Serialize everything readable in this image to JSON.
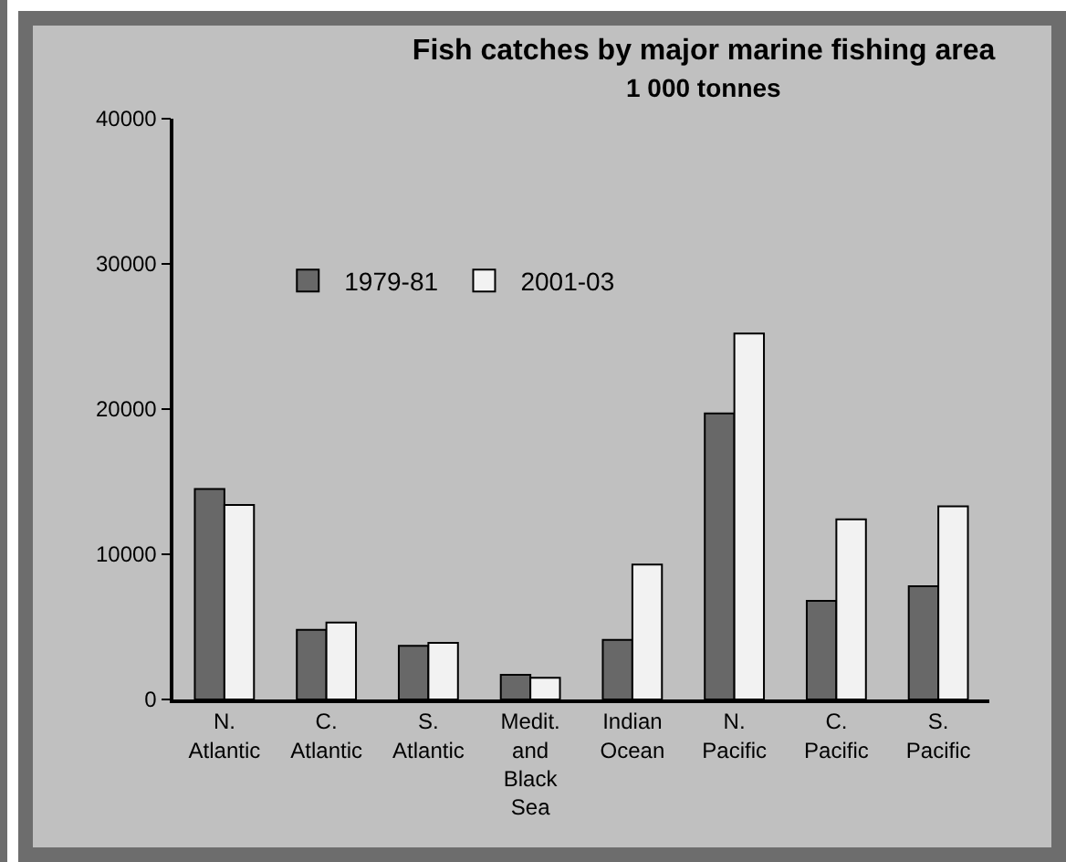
{
  "chart_data": {
    "type": "bar",
    "title": "Fish catches by major marine fishing area",
    "subtitle": "1 000 tonnes",
    "categories": [
      "N. Atlantic",
      "C. Atlantic",
      "S. Atlantic",
      "Medit. and Black Sea",
      "Indian Ocean",
      "N. Pacific",
      "C. Pacific",
      "S. Pacific"
    ],
    "series": [
      {
        "name": "1979-81",
        "color": "#686868",
        "values": [
          14500,
          4800,
          3700,
          1700,
          4100,
          19700,
          6800,
          7800
        ]
      },
      {
        "name": "2001-03",
        "color": "#f2f2f2",
        "values": [
          13400,
          5300,
          3900,
          1500,
          9300,
          25200,
          12400,
          13300
        ]
      }
    ],
    "ylim": [
      0,
      40000
    ],
    "yticks": [
      0,
      10000,
      20000,
      30000,
      40000
    ],
    "grid": false,
    "legend": "top left"
  }
}
